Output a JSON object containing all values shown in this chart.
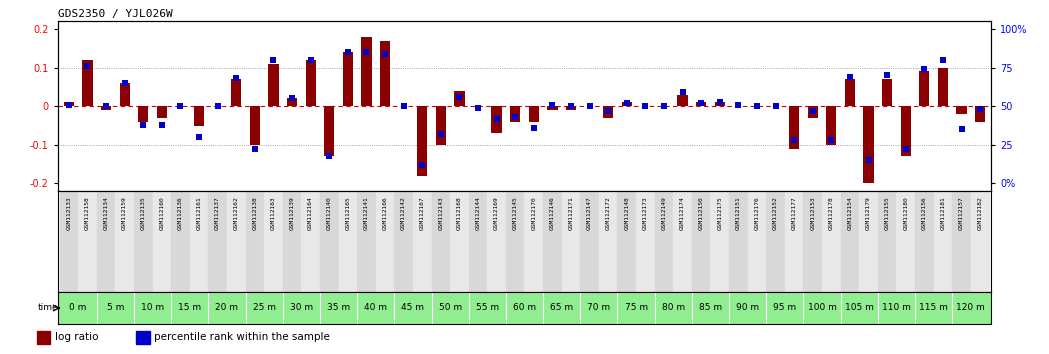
{
  "title": "GDS2350 / YJL026W",
  "samples": [
    "GSM112133",
    "GSM112158",
    "GSM112134",
    "GSM112159",
    "GSM112135",
    "GSM112160",
    "GSM112136",
    "GSM112161",
    "GSM112137",
    "GSM112162",
    "GSM112138",
    "GSM112163",
    "GSM112139",
    "GSM112164",
    "GSM112140",
    "GSM112165",
    "GSM112141",
    "GSM112166",
    "GSM112142",
    "GSM112167",
    "GSM112143",
    "GSM112168",
    "GSM112144",
    "GSM112169",
    "GSM112145",
    "GSM112170",
    "GSM112146",
    "GSM112171",
    "GSM112147",
    "GSM112172",
    "GSM112148",
    "GSM112173",
    "GSM112149",
    "GSM112174",
    "GSM112150",
    "GSM112175",
    "GSM112151",
    "GSM112176",
    "GSM112152",
    "GSM112177",
    "GSM112153",
    "GSM112178",
    "GSM112154",
    "GSM112179",
    "GSM112155",
    "GSM112180",
    "GSM112156",
    "GSM112181",
    "GSM112157",
    "GSM112182"
  ],
  "time_labels": [
    "0 m",
    "5 m",
    "10 m",
    "15 m",
    "20 m",
    "25 m",
    "30 m",
    "35 m",
    "40 m",
    "45 m",
    "50 m",
    "55 m",
    "60 m",
    "65 m",
    "70 m",
    "75 m",
    "80 m",
    "85 m",
    "90 m",
    "95 m",
    "100 m",
    "105 m",
    "110 m",
    "115 m",
    "120 m"
  ],
  "log_ratio": [
    0.01,
    0.12,
    -0.01,
    0.06,
    -0.04,
    -0.03,
    0.0,
    -0.05,
    0.0,
    0.07,
    -0.1,
    0.11,
    0.02,
    0.12,
    -0.13,
    0.14,
    0.18,
    0.17,
    0.0,
    -0.18,
    -0.1,
    0.04,
    0.0,
    -0.07,
    -0.04,
    -0.04,
    -0.01,
    -0.01,
    0.0,
    -0.03,
    0.01,
    0.0,
    0.0,
    0.03,
    0.01,
    0.01,
    0.0,
    0.0,
    0.0,
    -0.11,
    -0.03,
    -0.1,
    0.07,
    -0.2,
    0.07,
    -0.13,
    0.09,
    0.1,
    -0.02,
    -0.04
  ],
  "percentile_rank": [
    51,
    76,
    50,
    65,
    38,
    38,
    50,
    30,
    50,
    68,
    22,
    80,
    55,
    80,
    18,
    85,
    85,
    84,
    50,
    12,
    32,
    56,
    49,
    42,
    43,
    36,
    51,
    50,
    50,
    47,
    52,
    50,
    50,
    59,
    52,
    53,
    51,
    50,
    50,
    28,
    47,
    28,
    69,
    15,
    70,
    22,
    74,
    80,
    35,
    48
  ],
  "bar_color": "#8B0000",
  "dot_color": "#0000CD",
  "bg_color": "#ffffff",
  "plot_bg": "#ffffff",
  "ylim": [
    -0.22,
    0.22
  ],
  "yticks_left": [
    -0.2,
    -0.1,
    0.0,
    0.1,
    0.2
  ],
  "dotted_line_color": "#888888",
  "zero_line_color": "#cc0000",
  "time_bg_color": "#90EE90",
  "sample_bg_color_odd": "#d8d8d8",
  "sample_bg_color_even": "#e8e8e8",
  "legend_log_ratio": "log ratio",
  "legend_pct": "percentile rank within the sample"
}
